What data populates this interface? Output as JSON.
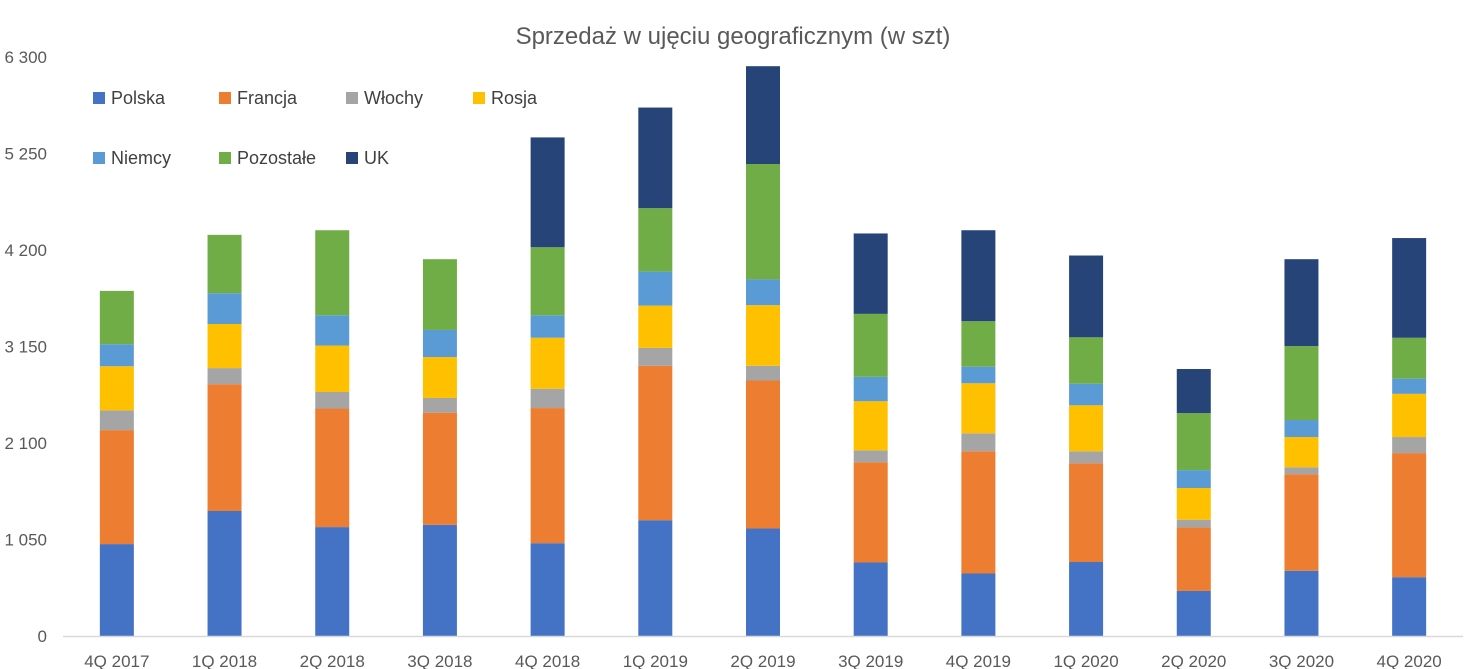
{
  "chart_data": {
    "type": "bar",
    "stacked": true,
    "title": "Sprzedaż w ujęciu geograficznym (w szt)",
    "xlabel": "",
    "ylabel": "",
    "ylim": [
      0,
      6300
    ],
    "yticks": [
      0,
      1050,
      2100,
      3150,
      4200,
      5250,
      6300
    ],
    "ytick_labels": [
      "0",
      "1 050",
      "2 100",
      "3 150",
      "4 200",
      "5 250",
      "6 300"
    ],
    "grid": false,
    "legend_position": "top-left",
    "categories": [
      "4Q 2017",
      "1Q 2018",
      "2Q 2018",
      "3Q 2018",
      "4Q 2018",
      "1Q 2019",
      "2Q 2019",
      "3Q 2019",
      "4Q 2019",
      "1Q 2020",
      "2Q 2020",
      "3Q 2020",
      "4Q 2020"
    ],
    "series": [
      {
        "name": "Polska",
        "color": "#4472C4",
        "values": [
          1000,
          1360,
          1185,
          1210,
          1010,
          1260,
          1170,
          800,
          680,
          805,
          490,
          710,
          640
        ]
      },
      {
        "name": "Francja",
        "color": "#ED7D31",
        "values": [
          1240,
          1380,
          1290,
          1220,
          1470,
          1680,
          1610,
          1090,
          1330,
          1075,
          690,
          1050,
          1350
        ]
      },
      {
        "name": "Włochy",
        "color": "#A5A5A5",
        "values": [
          215,
          175,
          180,
          160,
          210,
          195,
          160,
          130,
          195,
          130,
          85,
          75,
          175
        ]
      },
      {
        "name": "Rosja",
        "color": "#FFC000",
        "values": [
          480,
          480,
          505,
          445,
          555,
          460,
          660,
          535,
          545,
          500,
          345,
          330,
          470
        ]
      },
      {
        "name": "Niemcy",
        "color": "#5B9BD5",
        "values": [
          240,
          335,
          330,
          295,
          245,
          370,
          280,
          265,
          180,
          235,
          195,
          185,
          165
        ]
      },
      {
        "name": "Pozostałe",
        "color": "#70AD47",
        "values": [
          580,
          635,
          925,
          770,
          740,
          690,
          1255,
          685,
          495,
          505,
          620,
          805,
          445
        ]
      },
      {
        "name": "UK",
        "color": "#264478",
        "values": [
          0,
          0,
          0,
          0,
          1195,
          1095,
          1065,
          875,
          990,
          890,
          480,
          945,
          1085
        ]
      }
    ]
  }
}
